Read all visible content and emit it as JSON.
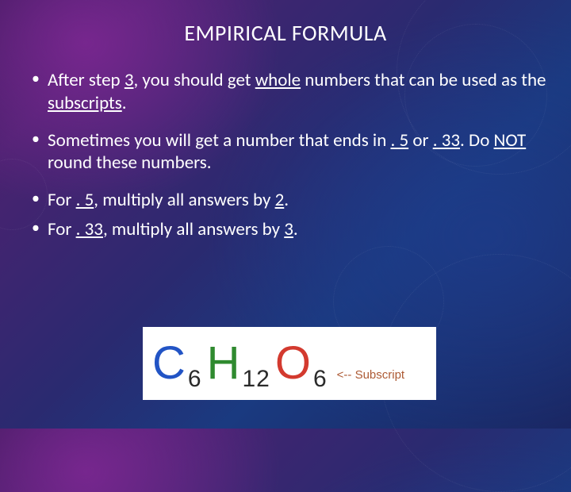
{
  "title": "EMPIRICAL FORMULA",
  "bullets": {
    "b1_pre": "After step ",
    "b1_u1": "3",
    "b1_mid1": ", you should get ",
    "b1_u2": "whole",
    "b1_mid2": " numbers that can be used as the ",
    "b1_u3": "subscripts",
    "b1_end": ".",
    "b2_pre": "Sometimes you will get a number that ends in ",
    "b2_u1": ". 5",
    "b2_mid": " or ",
    "b2_u2": ". 33",
    "b2_mid2": ". Do ",
    "b2_u3": "NOT",
    "b2_end": " round these numbers.",
    "b3_pre": "For ",
    "b3_u1": ". 5",
    "b3_mid": ", multiply all answers by ",
    "b3_u2": "2",
    "b3_end": ".",
    "b4_pre": "For ",
    "b4_u1": ". 33",
    "b4_mid": ", multiply all answers by ",
    "b4_u2": "3",
    "b4_end": "."
  },
  "formula": {
    "elements": [
      {
        "symbol": "C",
        "color": "#2254c5",
        "subscript": "6"
      },
      {
        "symbol": "H",
        "color": "#2f8a2f",
        "subscript": "12"
      },
      {
        "symbol": "O",
        "color": "#d33a2f",
        "subscript": "6"
      }
    ],
    "subscript_color": "#2a2a2a",
    "annotation": "<-- Subscript",
    "annotation_color": "#ad5a34",
    "box_bg": "#ffffff"
  },
  "style": {
    "text_color": "#ffffff",
    "title_fontsize": 28,
    "body_fontsize": 23,
    "formula_fontsize": 58,
    "subscript_fontsize": 30
  }
}
